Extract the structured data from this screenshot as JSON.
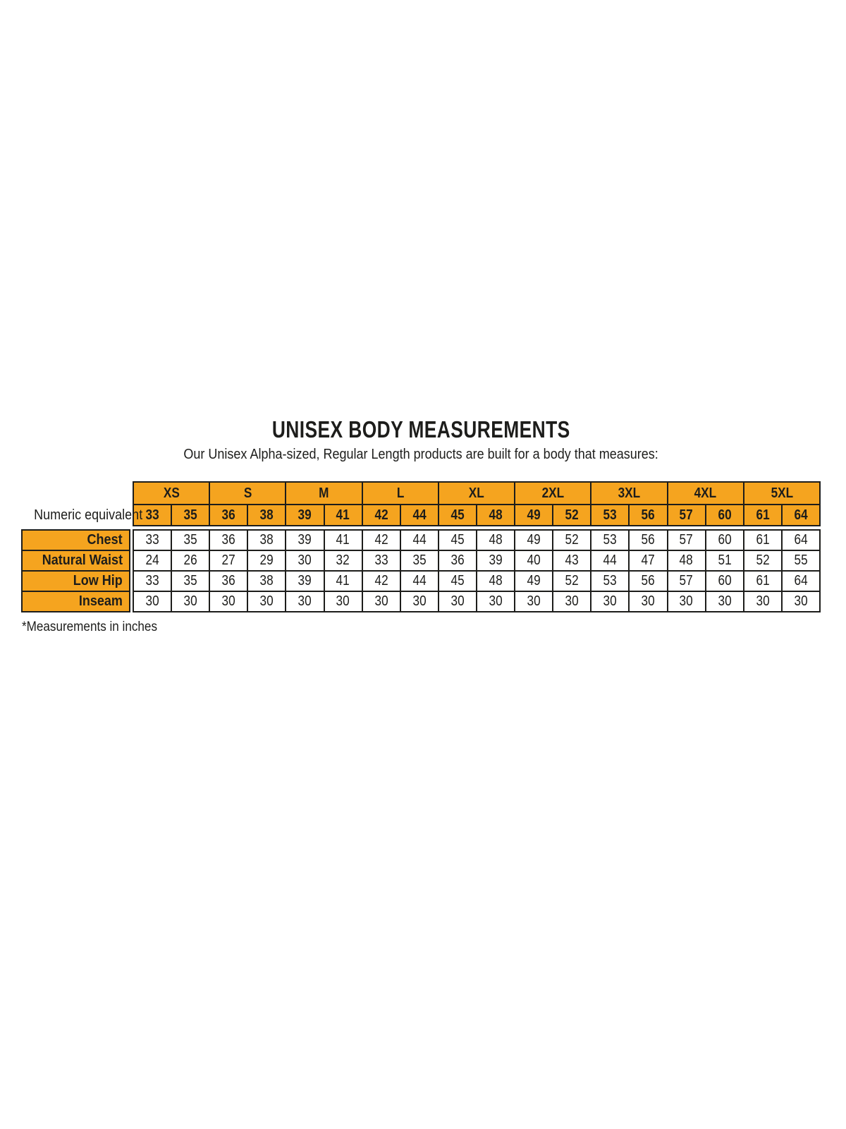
{
  "page": {
    "title": "UNISEX BODY MEASUREMENTS",
    "subtitle": "Our Unisex Alpha-sized, Regular Length products are built for a body that measures:",
    "footnote": "*Measurements in inches"
  },
  "colors": {
    "accent_orange": "#F5A41F",
    "border_ink": "#1D1D1B",
    "background": "#FFFFFF"
  },
  "table": {
    "sizes_row": [
      "XS",
      "S",
      "M",
      "L",
      "XL",
      "2XL",
      "3XL",
      "4XL",
      "5XL"
    ],
    "numeric_row": {
      "label": "Numeric equivalent",
      "values": [
        "33",
        "35",
        "36",
        "38",
        "39",
        "41",
        "42",
        "44",
        "45",
        "48",
        "49",
        "52",
        "53",
        "56",
        "57",
        "60",
        "61",
        "64"
      ]
    },
    "body_rows": [
      {
        "label": "Chest",
        "values": [
          "33",
          "35",
          "36",
          "38",
          "39",
          "41",
          "42",
          "44",
          "45",
          "48",
          "49",
          "52",
          "53",
          "56",
          "57",
          "60",
          "61",
          "64"
        ]
      },
      {
        "label": "Natural Waist",
        "values": [
          "24",
          "26",
          "27",
          "29",
          "30",
          "32",
          "33",
          "35",
          "36",
          "39",
          "40",
          "43",
          "44",
          "47",
          "48",
          "51",
          "52",
          "55"
        ]
      },
      {
        "label": "Low Hip",
        "values": [
          "33",
          "35",
          "36",
          "38",
          "39",
          "41",
          "42",
          "44",
          "45",
          "48",
          "49",
          "52",
          "53",
          "56",
          "57",
          "60",
          "61",
          "64"
        ]
      },
      {
        "label": "Inseam",
        "values": [
          "30",
          "30",
          "30",
          "30",
          "30",
          "30",
          "30",
          "30",
          "30",
          "30",
          "30",
          "30",
          "30",
          "30",
          "30",
          "30",
          "30",
          "30"
        ]
      }
    ]
  }
}
